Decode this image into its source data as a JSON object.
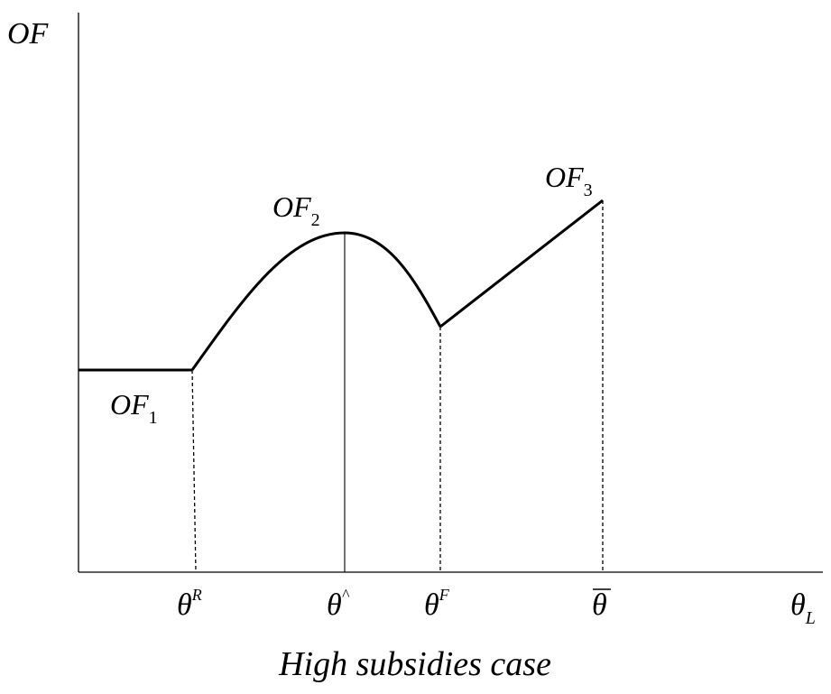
{
  "y_axis_label": "OF",
  "x_axis_label": {
    "base": "θ",
    "sub": "L"
  },
  "curve_labels": [
    {
      "base": "OF",
      "sub": "1"
    },
    {
      "base": "OF",
      "sub": "2"
    },
    {
      "base": "OF",
      "sub": "3"
    }
  ],
  "tick_labels": {
    "theta_R": {
      "base": "θ",
      "sup": "R"
    },
    "theta_hat": {
      "base": "θ",
      "sup": "^"
    },
    "theta_F": {
      "base": "θ",
      "sup": "F"
    },
    "theta_bar": {
      "base": "θ",
      "bar": true
    }
  },
  "caption": "High subsidies case",
  "colors": {
    "ink": "#000000",
    "background": "#ffffff"
  }
}
